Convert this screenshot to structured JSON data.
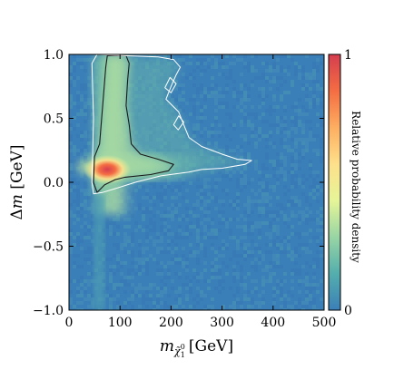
{
  "chart_data": {
    "type": "heatmap",
    "title": "",
    "xlabel_main": "m",
    "xlabel_sub": "χ̃",
    "xlabel_sub_sub": "1",
    "xlabel_sup": "0",
    "xlabel_unit": "[GeV]",
    "ylabel_main": "Δm",
    "ylabel_unit": "[GeV]",
    "xlim": [
      0,
      500
    ],
    "ylim": [
      -1.0,
      1.0
    ],
    "xticks": [
      0,
      100,
      200,
      300,
      400,
      500
    ],
    "xtick_labels": [
      "0",
      "100",
      "200",
      "300",
      "400",
      "500"
    ],
    "yticks": [
      -1.0,
      -0.5,
      0.0,
      0.5,
      1.0
    ],
    "ytick_labels": [
      "−1.0",
      "−0.5",
      "0.0",
      "0.5",
      "1.0"
    ],
    "colorbar": {
      "label": "Relative probability density",
      "min_label": "0",
      "max_label": "1",
      "range": [
        0,
        1
      ],
      "colormap": "Spectral_r",
      "stops": [
        "#3b7fb8",
        "#54aead",
        "#98d5a4",
        "#e6f598",
        "#fee08b",
        "#fdae61",
        "#f46d43",
        "#d53e4f"
      ]
    },
    "density_description": {
      "background_level": 0.08,
      "peak": {
        "x": 75,
        "y": 0.1,
        "level": 1.0
      },
      "band_low_y": {
        "x_range": [
          55,
          340
        ],
        "y": 0.1,
        "level": 0.45
      },
      "band_vertical": {
        "x_range": [
          55,
          120
        ],
        "y_range": [
          -0.05,
          1.0
        ],
        "level": 0.4
      }
    },
    "contours": [
      {
        "name": "inner",
        "color": "#1a1a1a",
        "points": [
          [
            50,
            0.2
          ],
          [
            60,
            0.3
          ],
          [
            72,
            0.9
          ],
          [
            75,
            0.99
          ],
          [
            112,
            0.99
          ],
          [
            118,
            0.93
          ],
          [
            115,
            0.8
          ],
          [
            112,
            0.6
          ],
          [
            118,
            0.45
          ],
          [
            122,
            0.3
          ],
          [
            140,
            0.22
          ],
          [
            175,
            0.18
          ],
          [
            205,
            0.14
          ],
          [
            195,
            0.09
          ],
          [
            160,
            0.06
          ],
          [
            110,
            0.04
          ],
          [
            90,
            0.02
          ],
          [
            70,
            -0.02
          ],
          [
            55,
            -0.08
          ],
          [
            48,
            0.0
          ],
          [
            50,
            0.2
          ]
        ]
      },
      {
        "name": "outer",
        "color": "#ffffff",
        "points": [
          [
            45,
            0.0
          ],
          [
            48,
            0.5
          ],
          [
            45,
            0.93
          ],
          [
            55,
            1.0
          ],
          [
            110,
            0.99
          ],
          [
            175,
            0.98
          ],
          [
            205,
            0.96
          ],
          [
            218,
            0.9
          ],
          [
            210,
            0.84
          ],
          [
            200,
            0.75
          ],
          [
            190,
            0.65
          ],
          [
            215,
            0.55
          ],
          [
            225,
            0.45
          ],
          [
            235,
            0.35
          ],
          [
            260,
            0.28
          ],
          [
            300,
            0.22
          ],
          [
            330,
            0.18
          ],
          [
            358,
            0.17
          ],
          [
            345,
            0.14
          ],
          [
            300,
            0.11
          ],
          [
            260,
            0.1
          ],
          [
            235,
            0.08
          ],
          [
            180,
            0.05
          ],
          [
            130,
            0.0
          ],
          [
            90,
            -0.05
          ],
          [
            65,
            -0.08
          ],
          [
            48,
            -0.09
          ],
          [
            45,
            0.0
          ]
        ]
      },
      {
        "name": "outer-island-a",
        "color": "#ffffff",
        "points": [
          [
            188,
            0.74
          ],
          [
            198,
            0.82
          ],
          [
            210,
            0.77
          ],
          [
            200,
            0.7
          ],
          [
            188,
            0.74
          ]
        ]
      },
      {
        "name": "outer-island-b",
        "color": "#ffffff",
        "points": [
          [
            205,
            0.45
          ],
          [
            215,
            0.52
          ],
          [
            225,
            0.47
          ],
          [
            214,
            0.41
          ],
          [
            205,
            0.45
          ]
        ]
      }
    ]
  }
}
